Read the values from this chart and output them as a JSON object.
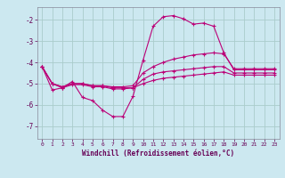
{
  "background_color": "#cce8f0",
  "grid_color": "#aacccc",
  "line_color": "#bb0077",
  "xlabel": "Windchill (Refroidissement éolien,°C)",
  "xlabel_color": "#660055",
  "tick_label_color": "#660055",
  "xlim": [
    -0.5,
    23.5
  ],
  "ylim": [
    -7.6,
    -1.4
  ],
  "yticks": [
    -7,
    -6,
    -5,
    -4,
    -3,
    -2
  ],
  "xticks": [
    0,
    1,
    2,
    3,
    4,
    5,
    6,
    7,
    8,
    9,
    10,
    11,
    12,
    13,
    14,
    15,
    16,
    17,
    18,
    19,
    20,
    21,
    22,
    23
  ],
  "line1_x": [
    0,
    1,
    2,
    3,
    4,
    5,
    6,
    7,
    8,
    9,
    10,
    11,
    12,
    13,
    14,
    15,
    16,
    17,
    18,
    19,
    20,
    21,
    22,
    23
  ],
  "line1_y": [
    -4.2,
    -5.3,
    -5.2,
    -4.9,
    -5.65,
    -5.8,
    -6.25,
    -6.55,
    -6.55,
    -5.6,
    -3.9,
    -2.3,
    -1.85,
    -1.8,
    -1.95,
    -2.2,
    -2.15,
    -2.3,
    -3.55,
    -4.35,
    -4.35,
    -4.35,
    -4.35,
    -4.35
  ],
  "line2_x": [
    0,
    1,
    2,
    3,
    4,
    5,
    6,
    7,
    8,
    9,
    10,
    11,
    12,
    13,
    14,
    15,
    16,
    17,
    18,
    19,
    20,
    21,
    22,
    23
  ],
  "line2_y": [
    -4.2,
    -5.0,
    -5.15,
    -5.0,
    -5.0,
    -5.1,
    -5.1,
    -5.15,
    -5.15,
    -5.1,
    -4.5,
    -4.2,
    -4.0,
    -3.85,
    -3.75,
    -3.65,
    -3.6,
    -3.55,
    -3.6,
    -4.3,
    -4.3,
    -4.3,
    -4.3,
    -4.3
  ],
  "line3_x": [
    0,
    1,
    2,
    3,
    4,
    5,
    6,
    7,
    8,
    9,
    10,
    11,
    12,
    13,
    14,
    15,
    16,
    17,
    18,
    19,
    20,
    21,
    22,
    23
  ],
  "line3_y": [
    -4.2,
    -5.0,
    -5.15,
    -5.0,
    -5.0,
    -5.1,
    -5.1,
    -5.2,
    -5.2,
    -5.2,
    -4.8,
    -4.55,
    -4.45,
    -4.4,
    -4.35,
    -4.3,
    -4.25,
    -4.2,
    -4.2,
    -4.5,
    -4.5,
    -4.5,
    -4.5,
    -4.5
  ],
  "line4_x": [
    0,
    1,
    2,
    3,
    4,
    5,
    6,
    7,
    8,
    9,
    10,
    11,
    12,
    13,
    14,
    15,
    16,
    17,
    18,
    19,
    20,
    21,
    22,
    23
  ],
  "line4_y": [
    -4.2,
    -5.0,
    -5.2,
    -5.05,
    -5.05,
    -5.15,
    -5.15,
    -5.25,
    -5.25,
    -5.2,
    -5.0,
    -4.85,
    -4.75,
    -4.7,
    -4.65,
    -4.6,
    -4.55,
    -4.5,
    -4.45,
    -4.6,
    -4.6,
    -4.6,
    -4.6,
    -4.6
  ]
}
